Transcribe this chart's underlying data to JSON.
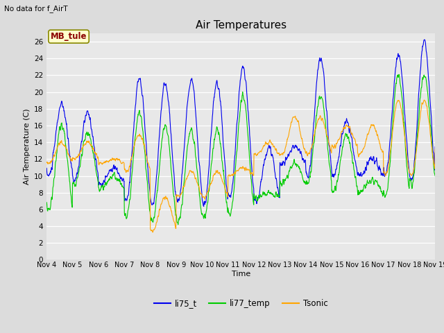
{
  "title": "Air Temperatures",
  "ylabel": "Air Temperature (C)",
  "xlabel": "Time",
  "no_data_text": "No data for f_AirT",
  "legend_label_text": "MB_tule",
  "ylim": [
    0,
    27
  ],
  "yticks": [
    0,
    2,
    4,
    6,
    8,
    10,
    12,
    14,
    16,
    18,
    20,
    22,
    24,
    26
  ],
  "x_tick_labels": [
    "Nov 4",
    "Nov 5",
    "Nov 6",
    "Nov 7",
    "Nov 8",
    "Nov 9",
    "Nov 10",
    "Nov 11",
    "Nov 12",
    "Nov 13",
    "Nov 14",
    "Nov 15",
    "Nov 16",
    "Nov 17",
    "Nov 18",
    "Nov 19"
  ],
  "bg_color": "#dcdcdc",
  "plot_bg_color": "#e8e8e8",
  "line_colors": {
    "li75_t": "#0000ee",
    "li77_temp": "#00cc00",
    "Tsonic": "#ffa500"
  },
  "legend_entries": [
    "li75_t",
    "li77_temp",
    "Tsonic"
  ],
  "n_days": 15,
  "n_points_per_day": 96
}
